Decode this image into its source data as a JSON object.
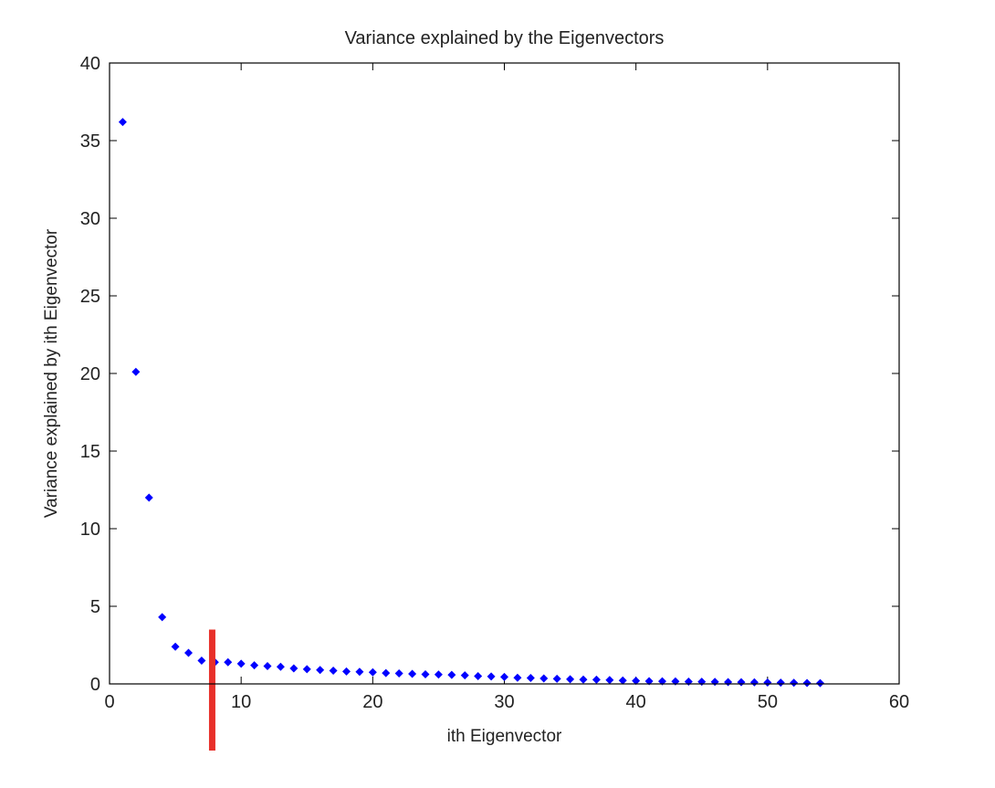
{
  "chart_data": {
    "type": "scatter",
    "title": "Variance explained by the Eigenvectors",
    "xlabel": "ith Eigenvector",
    "ylabel": "Variance explained by ith Eigenvector",
    "xlim": [
      0,
      60
    ],
    "ylim": [
      0,
      40
    ],
    "xticks": [
      0,
      10,
      20,
      30,
      40,
      50,
      60
    ],
    "yticks": [
      0,
      5,
      10,
      15,
      20,
      25,
      30,
      35,
      40
    ],
    "grid": false,
    "legend": "none",
    "marker_color": "#0000ff",
    "marker_shape": "diamond",
    "series": [
      {
        "x": [
          1,
          2,
          3,
          4,
          5,
          6,
          7,
          8,
          9,
          10,
          11,
          12,
          13,
          14,
          15,
          16,
          17,
          18,
          19,
          20,
          21,
          22,
          23,
          24,
          25,
          26,
          27,
          28,
          29,
          30,
          31,
          32,
          33,
          34,
          35,
          36,
          37,
          38,
          39,
          40,
          41,
          42,
          43,
          44,
          45,
          46,
          47,
          48,
          49,
          50,
          51,
          52,
          53,
          54
        ],
        "y": [
          36.2,
          20.1,
          12.0,
          4.3,
          2.4,
          2.0,
          1.5,
          1.4,
          1.4,
          1.3,
          1.2,
          1.15,
          1.1,
          1.0,
          0.95,
          0.9,
          0.85,
          0.8,
          0.78,
          0.75,
          0.7,
          0.68,
          0.65,
          0.62,
          0.6,
          0.58,
          0.55,
          0.5,
          0.48,
          0.45,
          0.4,
          0.38,
          0.35,
          0.33,
          0.3,
          0.28,
          0.27,
          0.25,
          0.22,
          0.2,
          0.18,
          0.17,
          0.16,
          0.15,
          0.14,
          0.13,
          0.12,
          0.11,
          0.1,
          0.09,
          0.08,
          0.07,
          0.06,
          0.05
        ]
      }
    ],
    "annotations": [
      {
        "type": "vertical-bar",
        "x": 7.8,
        "y_top": 3.5,
        "color": "#e8302a"
      }
    ]
  }
}
